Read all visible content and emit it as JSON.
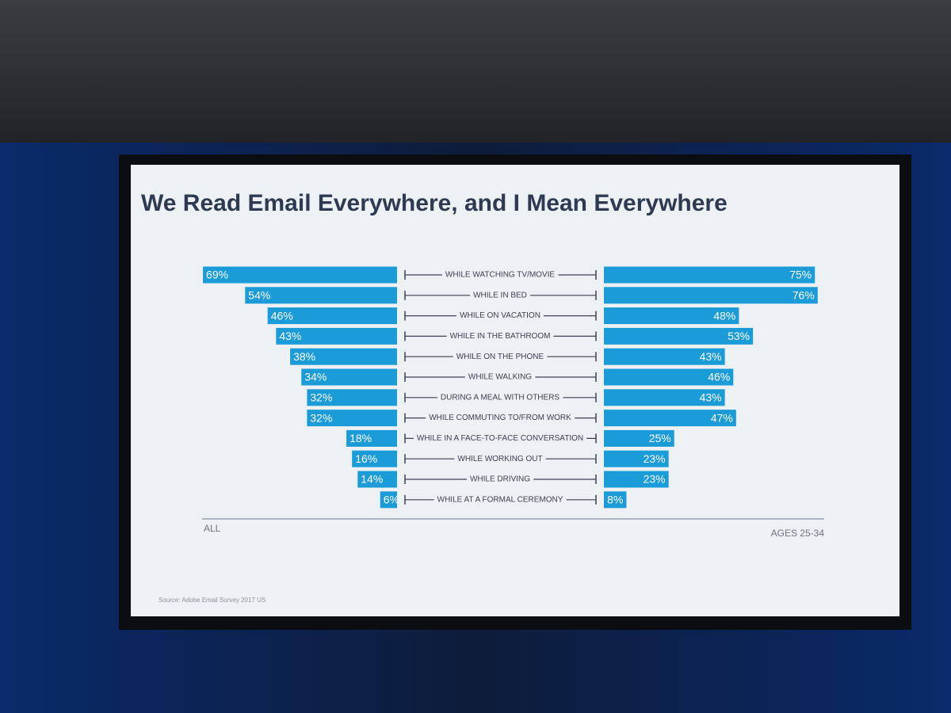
{
  "chart_data": {
    "type": "butterfly-bar",
    "title": "We Read Email Everywhere, and I Mean Everywhere",
    "source": "Source: Adobe Email Survey 2017 US",
    "categories": [
      "WHILE WATCHING TV/MOVIE",
      "WHILE IN BED",
      "WHILE ON VACATION",
      "WHILE IN THE BATHROOM",
      "WHILE ON THE PHONE",
      "WHILE WALKING",
      "DURING A MEAL WITH OTHERS",
      "WHILE COMMUTING TO/FROM WORK",
      "WHILE IN A FACE-TO-FACE CONVERSATION",
      "WHILE WORKING OUT",
      "WHILE DRIVING",
      "WHILE AT A FORMAL CEREMONY"
    ],
    "series": [
      {
        "name": "ALL",
        "color": "#1b9bd8",
        "side": "left",
        "values": [
          69,
          54,
          46,
          43,
          38,
          34,
          32,
          32,
          18,
          16,
          14,
          6
        ],
        "value_labels": [
          "69%",
          "54%",
          "46%",
          "43%",
          "38%",
          "34%",
          "32%",
          "32%",
          "18%",
          "16%",
          "14%",
          "6%"
        ]
      },
      {
        "name": "AGES 25-34",
        "color": "#1b9bd8",
        "side": "right",
        "values": [
          75,
          76,
          48,
          53,
          43,
          46,
          43,
          47,
          25,
          23,
          23,
          8
        ],
        "value_labels": [
          "75%",
          "76%",
          "48%",
          "53%",
          "43%",
          "46%",
          "43%",
          "47%",
          "25%",
          "23%",
          "23%",
          "8%"
        ]
      }
    ]
  }
}
